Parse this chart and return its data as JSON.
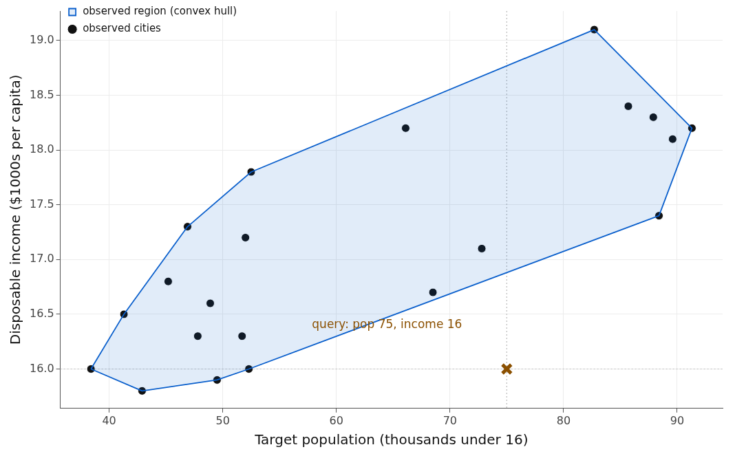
{
  "chart_data": {
    "type": "scatter",
    "xlabel": "Target population (thousands under 16)",
    "ylabel": "Disposable income ($1000s per capita)",
    "xlim": [
      35.7,
      94
    ],
    "xticks": [
      40,
      50,
      60,
      70,
      80,
      90
    ],
    "ylim": [
      15.64,
      19.27
    ],
    "yticks": [
      {
        "value": 16,
        "label": "16.0"
      },
      16.5,
      {
        "value": 17,
        "label": "17.0"
      },
      17.5,
      {
        "value": 18,
        "label": "18.0"
      },
      18.5,
      {
        "value": 19,
        "label": "19.0"
      }
    ],
    "grid": true,
    "legend": "top left",
    "series": [
      {
        "name": "observed region (convex hull)",
        "type": "area",
        "color": "#0a5fcc",
        "x": [
          38.4,
          42.9,
          49.5,
          52.3,
          88.4,
          91.3,
          82.7,
          52.5,
          46.9,
          41.3,
          38.4
        ],
        "values": [
          16.0,
          15.8,
          15.9,
          16.0,
          17.4,
          18.2,
          19.1,
          17.8,
          17.3,
          16.5,
          16.0
        ]
      },
      {
        "name": "observed cities",
        "color": "#111111",
        "marker": "circle",
        "x": [
          38.4,
          42.9,
          49.5,
          52.3,
          41.3,
          46.9,
          52.5,
          45.2,
          48.9,
          47.8,
          52.0,
          51.7,
          66.1,
          68.5,
          72.8,
          82.7,
          85.7,
          87.9,
          89.6,
          91.3,
          88.4
        ],
        "values": [
          16.0,
          15.8,
          15.9,
          16.0,
          16.5,
          17.3,
          17.8,
          16.8,
          16.6,
          16.3,
          17.2,
          16.3,
          18.2,
          16.7,
          17.1,
          19.1,
          18.4,
          18.3,
          18.1,
          18.2,
          17.4
        ]
      },
      {
        "type": "scatter",
        "color": "#8b5000",
        "marker": "cross",
        "x": [
          75
        ],
        "values": [
          16.0
        ]
      }
    ],
    "ref_lines": [
      {
        "axis": "x",
        "value": 75,
        "color": "#bbbbbb",
        "line_style": "dotted"
      },
      {
        "axis": "y",
        "value": 16.0,
        "color": "#bbbbbb",
        "line_style": "dotted"
      }
    ],
    "annotations": [
      "query: pop 75, income 16"
    ]
  }
}
